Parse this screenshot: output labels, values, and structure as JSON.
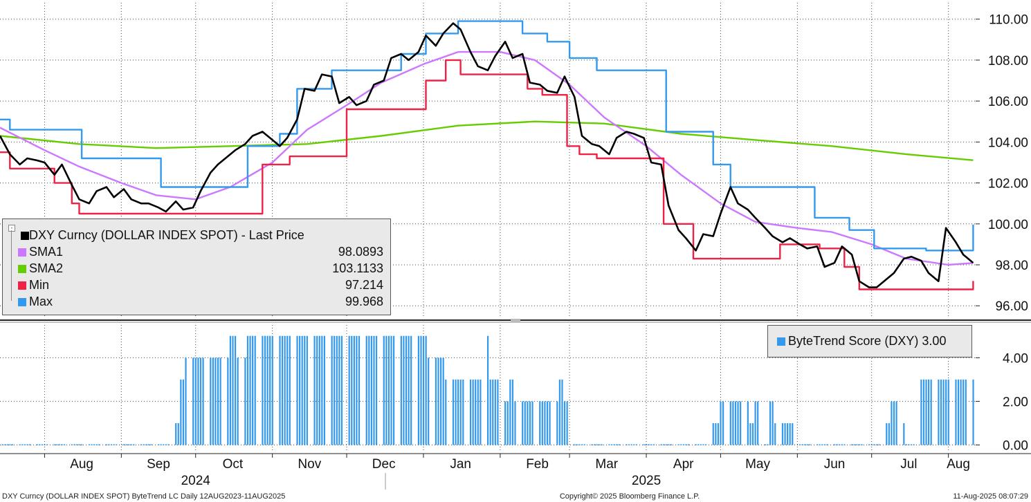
{
  "chart_data": [
    {
      "type": "line",
      "panel": "price",
      "y_axis_position": "right",
      "ylim": [
        95.4,
        110.8
      ],
      "yticks": [
        "110.00",
        "108.00",
        "106.00",
        "104.00",
        "102.00",
        "100.00",
        "98.00",
        "96.00"
      ],
      "ytick_values": [
        110,
        108,
        106,
        104,
        102,
        100,
        98,
        96
      ],
      "grid": true,
      "x_range": [
        "2024-07-14",
        "2025-08-12"
      ],
      "legend_placement": "bottom-left",
      "series": [
        {
          "name": "DXY Curncy (DOLLAR INDEX SPOT) - Last Price",
          "legend_value": "",
          "color": "#000000",
          "x": [
            "2024-07-14",
            "2024-07-18",
            "2024-07-22",
            "2024-07-25",
            "2024-07-29",
            "2024-08-01",
            "2024-08-05",
            "2024-08-08",
            "2024-08-12",
            "2024-08-15",
            "2024-08-19",
            "2024-08-22",
            "2024-08-26",
            "2024-08-29",
            "2024-09-02",
            "2024-09-05",
            "2024-09-09",
            "2024-09-12",
            "2024-09-16",
            "2024-09-19",
            "2024-09-23",
            "2024-09-26",
            "2024-09-30",
            "2024-10-03",
            "2024-10-07",
            "2024-10-10",
            "2024-10-14",
            "2024-10-17",
            "2024-10-21",
            "2024-10-24",
            "2024-10-28",
            "2024-10-31",
            "2024-11-04",
            "2024-11-07",
            "2024-11-11",
            "2024-11-14",
            "2024-11-18",
            "2024-11-21",
            "2024-11-25",
            "2024-11-28",
            "2024-12-02",
            "2024-12-05",
            "2024-12-09",
            "2024-12-12",
            "2024-12-16",
            "2024-12-19",
            "2024-12-23",
            "2024-12-26",
            "2024-12-30",
            "2025-01-02",
            "2025-01-06",
            "2025-01-09",
            "2025-01-13",
            "2025-01-16",
            "2025-01-20",
            "2025-01-23",
            "2025-01-27",
            "2025-01-30",
            "2025-02-03",
            "2025-02-06",
            "2025-02-10",
            "2025-02-13",
            "2025-02-17",
            "2025-02-20",
            "2025-02-24",
            "2025-02-27",
            "2025-03-03",
            "2025-03-06",
            "2025-03-10",
            "2025-03-13",
            "2025-03-17",
            "2025-03-20",
            "2025-03-24",
            "2025-03-27",
            "2025-03-31",
            "2025-04-03",
            "2025-04-07",
            "2025-04-10",
            "2025-04-14",
            "2025-04-17",
            "2025-04-21",
            "2025-04-24",
            "2025-04-28",
            "2025-05-01",
            "2025-05-05",
            "2025-05-08",
            "2025-05-12",
            "2025-05-15",
            "2025-05-19",
            "2025-05-22",
            "2025-05-26",
            "2025-05-29",
            "2025-06-02",
            "2025-06-05",
            "2025-06-09",
            "2025-06-12",
            "2025-06-16",
            "2025-06-19",
            "2025-06-23",
            "2025-06-26",
            "2025-06-30",
            "2025-07-03",
            "2025-07-07",
            "2025-07-10",
            "2025-07-14",
            "2025-07-17",
            "2025-07-21",
            "2025-07-24",
            "2025-07-28",
            "2025-07-31",
            "2025-08-04",
            "2025-08-07",
            "2025-08-11"
          ],
          "values": [
            104.3,
            103.4,
            102.9,
            103.2,
            103.1,
            103.0,
            102.4,
            102.9,
            101.9,
            101.2,
            101.0,
            101.6,
            101.8,
            101.3,
            101.7,
            101.2,
            101.0,
            101.0,
            100.8,
            100.6,
            101.1,
            100.7,
            100.8,
            101.6,
            102.5,
            102.9,
            103.3,
            103.6,
            103.9,
            104.3,
            104.5,
            104.2,
            103.8,
            104.2,
            105.1,
            106.6,
            106.5,
            107.3,
            107.2,
            105.9,
            106.2,
            105.8,
            106.0,
            106.8,
            107.0,
            108.1,
            108.3,
            108.0,
            108.4,
            109.2,
            108.7,
            109.3,
            109.8,
            109.5,
            108.4,
            107.7,
            107.5,
            108.2,
            108.9,
            108.1,
            108.3,
            106.9,
            106.8,
            106.5,
            106.4,
            107.2,
            106.2,
            104.3,
            103.9,
            103.8,
            103.4,
            104.2,
            104.5,
            104.4,
            104.2,
            103.0,
            102.9,
            100.9,
            99.7,
            99.3,
            98.7,
            99.5,
            99.4,
            100.5,
            101.8,
            101.0,
            100.7,
            100.3,
            99.8,
            99.4,
            99.1,
            99.3,
            99.0,
            98.8,
            98.9,
            97.9,
            98.1,
            98.9,
            98.5,
            97.2,
            96.9,
            96.9,
            97.3,
            97.6,
            98.3,
            98.4,
            98.2,
            97.6,
            97.2,
            99.8,
            99.1,
            98.5,
            98.1
          ]
        },
        {
          "name": "SMA1",
          "legend_value": "98.0893",
          "color": "#cc77ff",
          "x": [
            "2024-07-14",
            "2024-08-01",
            "2024-08-15",
            "2024-09-01",
            "2024-09-15",
            "2024-10-01",
            "2024-10-15",
            "2024-11-01",
            "2024-11-15",
            "2024-12-01",
            "2024-12-15",
            "2025-01-01",
            "2025-01-15",
            "2025-02-01",
            "2025-02-15",
            "2025-03-01",
            "2025-03-15",
            "2025-04-01",
            "2025-04-15",
            "2025-05-01",
            "2025-05-15",
            "2025-06-01",
            "2025-06-15",
            "2025-07-01",
            "2025-07-15",
            "2025-08-01",
            "2025-08-11"
          ],
          "values": [
            104.7,
            103.6,
            102.8,
            102.0,
            101.4,
            101.2,
            101.8,
            103.0,
            104.6,
            105.8,
            106.9,
            107.8,
            108.4,
            108.4,
            108.0,
            106.8,
            105.2,
            103.8,
            102.4,
            101.0,
            100.1,
            99.8,
            99.6,
            99.0,
            98.3,
            98.0,
            98.09
          ]
        },
        {
          "name": "SMA2",
          "legend_value": "103.1133",
          "color": "#66cc00",
          "x": [
            "2024-07-14",
            "2024-08-15",
            "2024-09-15",
            "2024-10-15",
            "2024-11-15",
            "2024-12-15",
            "2025-01-15",
            "2025-02-15",
            "2025-03-15",
            "2025-04-15",
            "2025-05-15",
            "2025-06-15",
            "2025-07-15",
            "2025-08-11"
          ],
          "values": [
            104.3,
            103.9,
            103.7,
            103.8,
            103.9,
            104.3,
            104.8,
            105.0,
            104.9,
            104.4,
            104.1,
            103.8,
            103.4,
            103.11
          ]
        },
        {
          "name": "Min",
          "legend_value": "97.214",
          "color": "#ee2244",
          "x": [
            "2024-07-14",
            "2024-07-18",
            "2024-07-30",
            "2024-08-05",
            "2024-08-12",
            "2024-08-15",
            "2024-09-30",
            "2024-10-22",
            "2024-10-28",
            "2024-11-08",
            "2024-11-25",
            "2024-12-01",
            "2024-12-26",
            "2025-01-02",
            "2025-01-10",
            "2025-01-16",
            "2025-02-12",
            "2025-02-18",
            "2025-02-28",
            "2025-03-05",
            "2025-03-12",
            "2025-04-01",
            "2025-04-08",
            "2025-04-20",
            "2025-05-12",
            "2025-05-25",
            "2025-06-10",
            "2025-06-20",
            "2025-06-26",
            "2025-07-25",
            "2025-08-11"
          ],
          "values": [
            103.5,
            102.7,
            102.7,
            102.0,
            101.0,
            100.5,
            100.5,
            100.5,
            102.9,
            103.3,
            103.3,
            105.6,
            105.6,
            107.0,
            108.0,
            107.3,
            106.6,
            106.3,
            103.8,
            103.4,
            103.2,
            103.2,
            100.0,
            98.3,
            98.3,
            99.0,
            98.8,
            97.9,
            96.8,
            96.8,
            97.21
          ]
        },
        {
          "name": "Max",
          "legend_value": "99.968",
          "color": "#3399ee",
          "x": [
            "2024-07-14",
            "2024-07-18",
            "2024-08-05",
            "2024-08-16",
            "2024-08-30",
            "2024-09-17",
            "2024-10-01",
            "2024-10-22",
            "2024-11-04",
            "2024-11-11",
            "2024-11-25",
            "2024-12-23",
            "2025-01-02",
            "2025-01-15",
            "2025-01-25",
            "2025-02-10",
            "2025-02-20",
            "2025-03-01",
            "2025-03-12",
            "2025-03-28",
            "2025-04-09",
            "2025-04-22",
            "2025-04-28",
            "2025-05-05",
            "2025-06-02",
            "2025-06-08",
            "2025-06-22",
            "2025-07-02",
            "2025-07-23",
            "2025-08-11"
          ],
          "values": [
            105.1,
            104.6,
            104.6,
            103.2,
            103.2,
            101.8,
            101.8,
            103.8,
            104.4,
            106.6,
            107.5,
            108.3,
            109.3,
            109.9,
            109.9,
            109.3,
            108.9,
            108.1,
            107.5,
            107.5,
            104.5,
            104.5,
            102.9,
            101.8,
            101.8,
            100.3,
            99.7,
            98.8,
            98.7,
            99.968
          ]
        }
      ]
    },
    {
      "type": "bar",
      "panel": "score",
      "y_axis_position": "right",
      "ylim": [
        -0.3,
        5.5
      ],
      "yticks": [
        "4.00",
        "2.00",
        "0.00"
      ],
      "ytick_values": [
        4,
        2,
        0
      ],
      "grid": true,
      "legend_placement": "top-right",
      "series": [
        {
          "name": "ByteTrend Score (DXY)",
          "legend_value": "3.00",
          "color": "#3399ee",
          "segments": [
            {
              "start": "2024-07-14",
              "end": "2024-09-21",
              "value": 0
            },
            {
              "start": "2024-09-22",
              "end": "2024-09-24",
              "value": 1
            },
            {
              "start": "2024-09-25",
              "end": "2024-09-26",
              "value": 3
            },
            {
              "start": "2024-09-27",
              "end": "2024-10-14",
              "value": 4
            },
            {
              "start": "2024-10-15",
              "end": "2024-10-17",
              "value": 5
            },
            {
              "start": "2024-10-18",
              "end": "2024-10-21",
              "value": 4
            },
            {
              "start": "2024-10-22",
              "end": "2025-01-02",
              "value": 5
            },
            {
              "start": "2025-01-03",
              "end": "2025-01-09",
              "value": 4
            },
            {
              "start": "2025-01-10",
              "end": "2025-01-25",
              "value": 3
            },
            {
              "start": "2025-01-26",
              "end": "2025-01-27",
              "value": 5
            },
            {
              "start": "2025-01-28",
              "end": "2025-02-02",
              "value": 3
            },
            {
              "start": "2025-02-03",
              "end": "2025-02-04",
              "value": 2
            },
            {
              "start": "2025-02-05",
              "end": "2025-02-06",
              "value": 3
            },
            {
              "start": "2025-02-07",
              "end": "2025-02-24",
              "value": 2
            },
            {
              "start": "2025-02-25",
              "end": "2025-02-26",
              "value": 3
            },
            {
              "start": "2025-02-27",
              "end": "2025-03-02",
              "value": 2
            },
            {
              "start": "2025-03-03",
              "end": "2025-04-26",
              "value": 0
            },
            {
              "start": "2025-04-27",
              "end": "2025-04-30",
              "value": 1
            },
            {
              "start": "2025-05-01",
              "end": "2025-05-12",
              "value": 2
            },
            {
              "start": "2025-05-13",
              "end": "2025-05-14",
              "value": 1
            },
            {
              "start": "2025-05-15",
              "end": "2025-05-16",
              "value": 2
            },
            {
              "start": "2025-05-17",
              "end": "2025-05-20",
              "value": 0
            },
            {
              "start": "2025-05-21",
              "end": "2025-05-22",
              "value": 2
            },
            {
              "start": "2025-05-23",
              "end": "2025-05-24",
              "value": 1
            },
            {
              "start": "2025-05-25",
              "end": "2025-05-30",
              "value": 1
            },
            {
              "start": "2025-05-31",
              "end": "2025-07-04",
              "value": 0
            },
            {
              "start": "2025-07-05",
              "end": "2025-07-08",
              "value": 1
            },
            {
              "start": "2025-07-09",
              "end": "2025-07-12",
              "value": 2
            },
            {
              "start": "2025-07-13",
              "end": "2025-07-14",
              "value": 1
            },
            {
              "start": "2025-07-15",
              "end": "2025-07-18",
              "value": 0
            },
            {
              "start": "2025-07-19",
              "end": "2025-08-11",
              "value": 3
            }
          ]
        }
      ]
    }
  ],
  "x_axis": {
    "months": [
      {
        "label": "Aug",
        "date": "2024-08-01"
      },
      {
        "label": "Sep",
        "date": "2024-09-01"
      },
      {
        "label": "Oct",
        "date": "2024-10-01"
      },
      {
        "label": "Nov",
        "date": "2024-11-01"
      },
      {
        "label": "Dec",
        "date": "2024-12-01"
      },
      {
        "label": "Jan",
        "date": "2025-01-01"
      },
      {
        "label": "Feb",
        "date": "2025-02-01"
      },
      {
        "label": "Mar",
        "date": "2025-03-01"
      },
      {
        "label": "Apr",
        "date": "2025-04-01"
      },
      {
        "label": "May",
        "date": "2025-05-01"
      },
      {
        "label": "Jun",
        "date": "2025-06-01"
      },
      {
        "label": "Jul",
        "date": "2025-07-01"
      },
      {
        "label": "Aug",
        "date": "2025-08-01"
      }
    ],
    "years": [
      {
        "label": "2024",
        "date": "2024-10-01"
      },
      {
        "label": "2025",
        "date": "2025-04-01"
      }
    ]
  },
  "footer": {
    "left": "DXY Curncy (DOLLAR INDEX SPOT) ByteTrend LC  Daily 12AUG2023-11AUG2025",
    "center": "Copyright© 2025 Bloomberg Finance L.P.",
    "right": "11-Aug-2025 08:07:29"
  }
}
